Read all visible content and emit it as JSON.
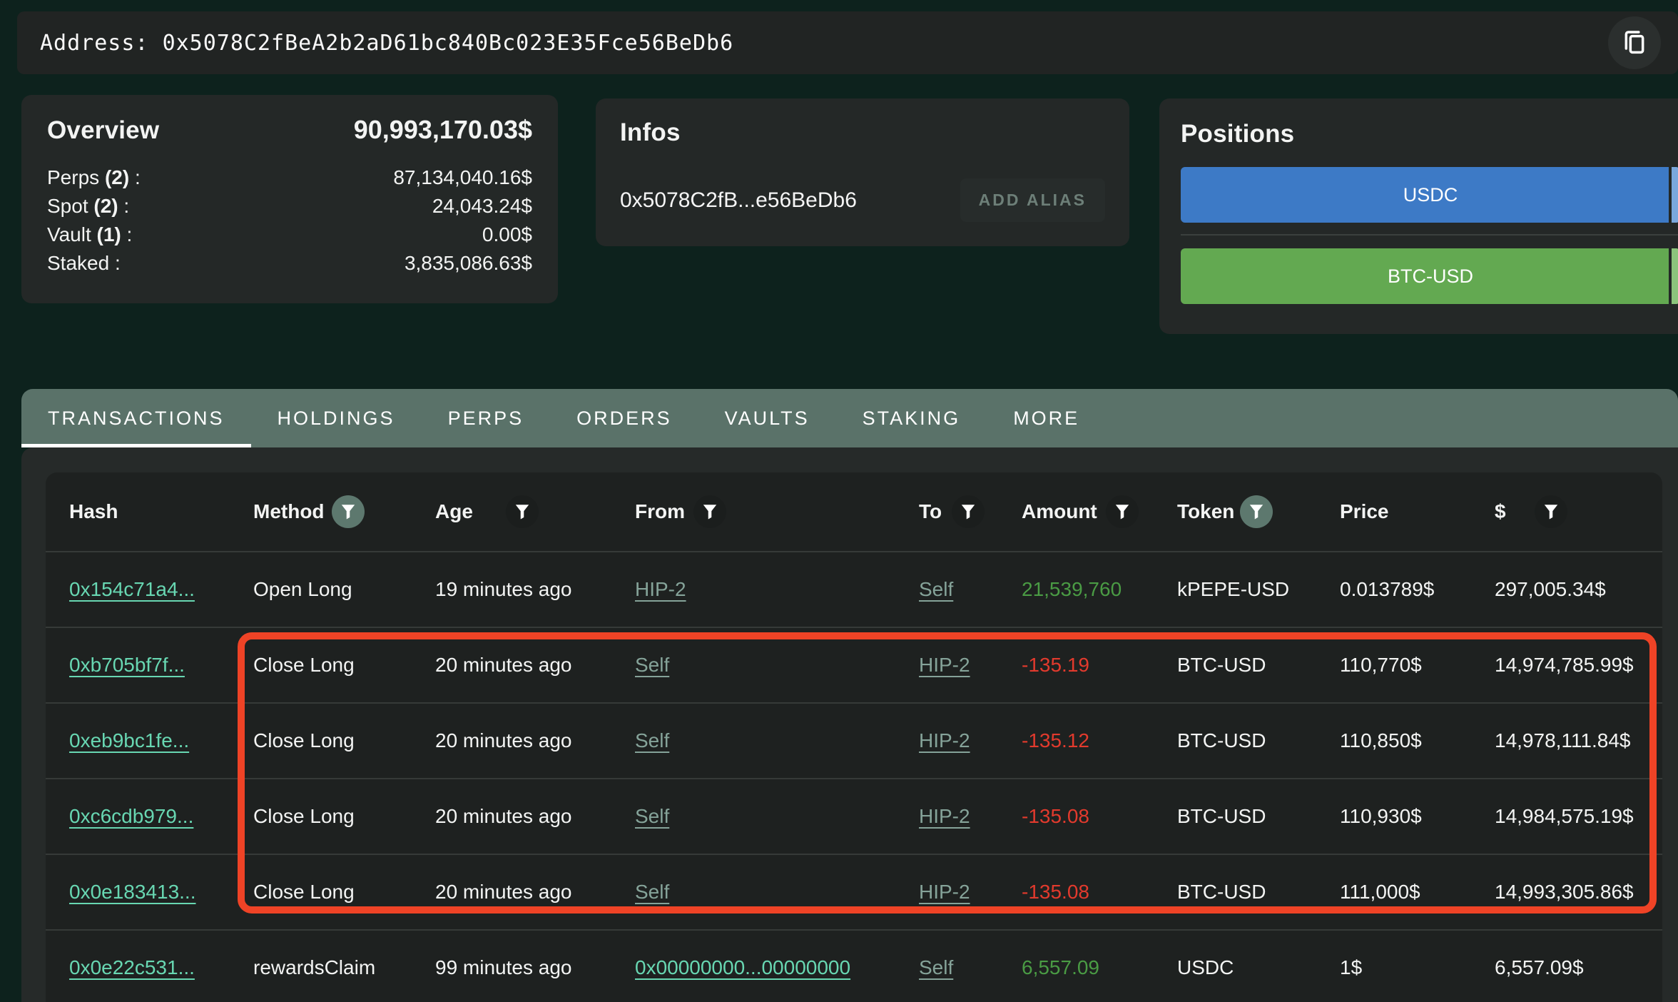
{
  "address_bar": {
    "label": "Address:",
    "value": "0x5078C2fBeA2b2aD61bc840Bc023E35Fce56BeDb6",
    "copy_icon": "copy-icon"
  },
  "overview": {
    "title": "Overview",
    "total": "90,993,170.03$",
    "rows": [
      {
        "name": "Perps",
        "count": "2",
        "value": "87,134,040.16$"
      },
      {
        "name": "Spot",
        "count": "2",
        "value": "24,043.24$"
      },
      {
        "name": "Vault",
        "count": "1",
        "value": "0.00$"
      },
      {
        "name": "Staked",
        "count": null,
        "value": "3,835,086.63$"
      }
    ]
  },
  "infos": {
    "title": "Infos",
    "address_short": "0x5078C2fB...e56BeDb6",
    "add_alias_label": "ADD ALIAS"
  },
  "positions": {
    "title": "Positions",
    "items": [
      {
        "label": "USDC",
        "color": "#3d7ac6",
        "edge_color": "#7aa7dc"
      },
      {
        "label": "BTC-USD",
        "color": "#63a951",
        "edge_color": "#8cc47c"
      }
    ]
  },
  "tabs": [
    {
      "label": "TRANSACTIONS",
      "active": true
    },
    {
      "label": "HOLDINGS",
      "active": false
    },
    {
      "label": "PERPS",
      "active": false
    },
    {
      "label": "ORDERS",
      "active": false
    },
    {
      "label": "VAULTS",
      "active": false
    },
    {
      "label": "STAKING",
      "active": false
    },
    {
      "label": "MORE",
      "active": false
    }
  ],
  "table": {
    "columns": [
      {
        "label": "Hash",
        "filter": "none"
      },
      {
        "label": "Method",
        "filter": "active"
      },
      {
        "label": "Age",
        "filter": "inactive"
      },
      {
        "label": "From",
        "filter": "inactive"
      },
      {
        "label": "To",
        "filter": "inactive"
      },
      {
        "label": "Amount",
        "filter": "inactive"
      },
      {
        "label": "Token",
        "filter": "active"
      },
      {
        "label": "Price",
        "filter": "none"
      },
      {
        "label": "$",
        "filter": "inactive"
      }
    ],
    "rows": [
      {
        "hash": "0x154c71a4...",
        "method": "Open Long",
        "age": "19 minutes ago",
        "from": {
          "text": "HIP-2",
          "style": "muted"
        },
        "to": {
          "text": "Self",
          "style": "muted"
        },
        "amount": "21,539,760",
        "amount_color": "green",
        "token": "kPEPE-USD",
        "price": "0.013789$",
        "usd": "297,005.34$"
      },
      {
        "hash": "0xb705bf7f...",
        "method": "Close Long",
        "age": "20 minutes ago",
        "from": {
          "text": "Self",
          "style": "muted"
        },
        "to": {
          "text": "HIP-2",
          "style": "muted"
        },
        "amount": "-135.19",
        "amount_color": "red",
        "token": "BTC-USD",
        "price": "110,770$",
        "usd": "14,974,785.99$"
      },
      {
        "hash": "0xeb9bc1fe...",
        "method": "Close Long",
        "age": "20 minutes ago",
        "from": {
          "text": "Self",
          "style": "muted"
        },
        "to": {
          "text": "HIP-2",
          "style": "muted"
        },
        "amount": "-135.12",
        "amount_color": "red",
        "token": "BTC-USD",
        "price": "110,850$",
        "usd": "14,978,111.84$"
      },
      {
        "hash": "0xc6cdb979...",
        "method": "Close Long",
        "age": "20 minutes ago",
        "from": {
          "text": "Self",
          "style": "muted"
        },
        "to": {
          "text": "HIP-2",
          "style": "muted"
        },
        "amount": "-135.08",
        "amount_color": "red",
        "token": "BTC-USD",
        "price": "110,930$",
        "usd": "14,984,575.19$"
      },
      {
        "hash": "0x0e183413...",
        "method": "Close Long",
        "age": "20 minutes ago",
        "from": {
          "text": "Self",
          "style": "muted"
        },
        "to": {
          "text": "HIP-2",
          "style": "muted"
        },
        "amount": "-135.08",
        "amount_color": "red",
        "token": "BTC-USD",
        "price": "111,000$",
        "usd": "14,993,305.86$"
      },
      {
        "hash": "0x0e22c531...",
        "method": "rewardsClaim",
        "age": "99 minutes ago",
        "from": {
          "text": "0x00000000...00000000",
          "style": "bright"
        },
        "to": {
          "text": "Self",
          "style": "muted"
        },
        "amount": "6,557.09",
        "amount_color": "green",
        "token": "USDC",
        "price": "1$",
        "usd": "6,557.09$"
      }
    ]
  },
  "annotation": {
    "color": "#ef4326",
    "highlighted_rows": "Close Long BTC-USD rows 2-5"
  },
  "colors": {
    "page_bg": "#0d221d",
    "card_bg": "#242827",
    "table_bg": "#1e2120",
    "tabbar_bg": "#5a7269",
    "link_bright": "#68d7b2",
    "link_muted": "#85a399",
    "amount_green": "#4a9b44",
    "amount_red": "#e23a2d",
    "usdc_bar": "#3d7ac6",
    "btc_bar": "#63a951"
  }
}
